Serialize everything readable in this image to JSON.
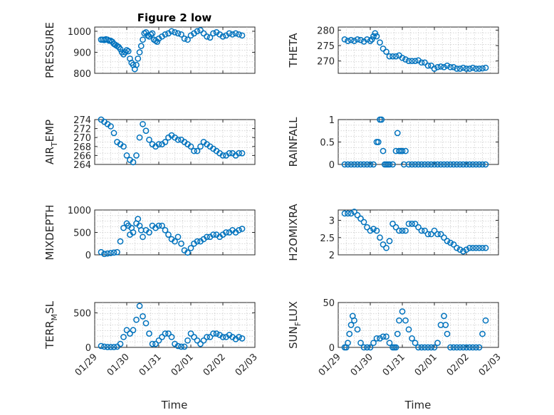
{
  "figure": {
    "title": "Figure 2 low",
    "marker_color": "#0072BD",
    "x_axis_label": "Time",
    "x_ticks": [
      "01/29",
      "01/30",
      "01/31",
      "02/01",
      "02/02",
      "02/03"
    ]
  },
  "chart_data": [
    {
      "type": "scatter",
      "title": "Figure 2 low",
      "ylabel": "PRESSURE",
      "xlabel": "",
      "xlim": [
        0,
        5
      ],
      "ylim": [
        800,
        1020
      ],
      "yticks": [
        800,
        900,
        1000
      ],
      "grid": true,
      "x": [
        0.2,
        0.25,
        0.3,
        0.35,
        0.4,
        0.45,
        0.5,
        0.55,
        0.6,
        0.65,
        0.7,
        0.75,
        0.8,
        0.85,
        0.9,
        0.95,
        1.0,
        1.05,
        1.1,
        1.15,
        1.2,
        1.25,
        1.3,
        1.35,
        1.4,
        1.45,
        1.5,
        1.55,
        1.6,
        1.65,
        1.7,
        1.75,
        1.8,
        1.85,
        1.9,
        1.95,
        2.0,
        2.1,
        2.2,
        2.3,
        2.4,
        2.5,
        2.6,
        2.7,
        2.8,
        2.9,
        3.0,
        3.1,
        3.2,
        3.3,
        3.4,
        3.5,
        3.6,
        3.7,
        3.8,
        3.9,
        4.0,
        4.1,
        4.2,
        4.3,
        4.4,
        4.5,
        4.6
      ],
      "y": [
        960,
        960,
        958,
        962,
        960,
        955,
        955,
        950,
        940,
        935,
        930,
        925,
        915,
        900,
        890,
        900,
        910,
        905,
        870,
        850,
        840,
        820,
        840,
        870,
        900,
        930,
        960,
        990,
        995,
        980,
        975,
        985,
        990,
        960,
        955,
        950,
        965,
        975,
        985,
        990,
        1000,
        995,
        990,
        985,
        965,
        960,
        980,
        990,
        1000,
        1005,
        990,
        975,
        970,
        990,
        995,
        985,
        975,
        980,
        990,
        985,
        990,
        985,
        980
      ]
    },
    {
      "type": "scatter",
      "ylabel": "THETA",
      "xlabel": "",
      "xlim": [
        0,
        5
      ],
      "ylim": [
        266,
        281
      ],
      "yticks": [
        270,
        275,
        280
      ],
      "grid": true,
      "x": [
        0.2,
        0.3,
        0.4,
        0.5,
        0.6,
        0.7,
        0.8,
        0.9,
        1.0,
        1.05,
        1.1,
        1.15,
        1.2,
        1.3,
        1.4,
        1.5,
        1.6,
        1.7,
        1.8,
        1.9,
        2.0,
        2.1,
        2.2,
        2.3,
        2.4,
        2.5,
        2.6,
        2.7,
        2.8,
        2.9,
        3.0,
        3.1,
        3.2,
        3.3,
        3.4,
        3.5,
        3.6,
        3.7,
        3.8,
        3.9,
        4.0,
        4.1,
        4.2,
        4.3,
        4.4,
        4.5,
        4.6
      ],
      "y": [
        277,
        276.5,
        276.8,
        276.5,
        277,
        276.8,
        276.3,
        277,
        276.5,
        277,
        278,
        279,
        278,
        276,
        274,
        273,
        271.5,
        271.5,
        271.5,
        271.8,
        271,
        270.5,
        270,
        270,
        270,
        270.2,
        269.5,
        269.5,
        268.5,
        268.5,
        267.5,
        268,
        268.2,
        268,
        268.5,
        268,
        268,
        267.5,
        267.5,
        267.8,
        267.5,
        267.5,
        267.8,
        267.5,
        267.5,
        267.6,
        267.8
      ]
    },
    {
      "type": "scatter",
      "ylabel": "AIR_TEMP",
      "xlabel": "",
      "xlim": [
        0,
        5
      ],
      "ylim": [
        264,
        274
      ],
      "yticks": [
        264,
        266,
        268,
        270,
        272,
        274
      ],
      "grid": true,
      "x": [
        0.2,
        0.3,
        0.4,
        0.5,
        0.6,
        0.7,
        0.8,
        0.9,
        1.0,
        1.1,
        1.2,
        1.3,
        1.4,
        1.5,
        1.6,
        1.7,
        1.8,
        1.9,
        2.0,
        2.1,
        2.2,
        2.3,
        2.4,
        2.5,
        2.6,
        2.7,
        2.8,
        2.9,
        3.0,
        3.1,
        3.2,
        3.3,
        3.4,
        3.5,
        3.6,
        3.7,
        3.8,
        3.9,
        4.0,
        4.1,
        4.2,
        4.3,
        4.4,
        4.5,
        4.6
      ],
      "y": [
        274,
        273.5,
        273,
        272.5,
        271,
        269,
        268.5,
        268,
        266,
        265,
        264.5,
        266,
        270,
        273,
        271.5,
        269.5,
        268.5,
        268,
        268.5,
        268.5,
        269,
        270,
        270.5,
        270,
        269.5,
        269.5,
        269,
        268.5,
        268,
        267,
        267,
        268,
        269,
        268.5,
        268,
        267.5,
        267,
        266.5,
        266,
        266,
        266.5,
        266.5,
        266,
        266.5,
        266.5
      ]
    },
    {
      "type": "scatter",
      "ylabel": "RAINFALL",
      "xlabel": "",
      "xlim": [
        0,
        5
      ],
      "ylim": [
        0,
        1
      ],
      "yticks": [
        0,
        0.5,
        1
      ],
      "grid": true,
      "x": [
        0.2,
        0.3,
        0.4,
        0.5,
        0.6,
        0.7,
        0.8,
        0.9,
        1.0,
        1.1,
        1.2,
        1.25,
        1.3,
        1.35,
        1.4,
        1.45,
        1.5,
        1.55,
        1.6,
        1.7,
        1.8,
        1.85,
        1.9,
        1.95,
        2.0,
        2.05,
        2.1,
        2.2,
        2.3,
        2.4,
        2.5,
        2.6,
        2.7,
        2.8,
        2.9,
        3.0,
        3.1,
        3.2,
        3.3,
        3.4,
        3.5,
        3.6,
        3.7,
        3.8,
        3.9,
        4.0,
        4.1,
        4.2,
        4.3,
        4.4,
        4.5,
        4.6
      ],
      "y": [
        0,
        0,
        0,
        0,
        0,
        0,
        0,
        0,
        0,
        0,
        0.5,
        0.5,
        1,
        1,
        0.3,
        0,
        0,
        0,
        0,
        0,
        0.3,
        0.7,
        0.3,
        0.3,
        0.3,
        0,
        0.3,
        0,
        0,
        0,
        0,
        0,
        0,
        0,
        0,
        0,
        0,
        0,
        0,
        0,
        0,
        0,
        0,
        0,
        0,
        0,
        0,
        0,
        0,
        0,
        0,
        0
      ]
    },
    {
      "type": "scatter",
      "ylabel": "MIXDEPTH",
      "xlabel": "",
      "xlim": [
        0,
        5
      ],
      "ylim": [
        0,
        1000
      ],
      "yticks": [
        0,
        500,
        1000
      ],
      "grid": true,
      "x": [
        0.2,
        0.3,
        0.4,
        0.5,
        0.6,
        0.7,
        0.8,
        0.9,
        1.0,
        1.05,
        1.1,
        1.15,
        1.2,
        1.3,
        1.35,
        1.4,
        1.45,
        1.5,
        1.6,
        1.7,
        1.8,
        1.9,
        2.0,
        2.1,
        2.2,
        2.3,
        2.4,
        2.5,
        2.6,
        2.7,
        2.8,
        2.9,
        3.0,
        3.1,
        3.2,
        3.3,
        3.4,
        3.5,
        3.6,
        3.7,
        3.8,
        3.9,
        4.0,
        4.1,
        4.2,
        4.3,
        4.4,
        4.5,
        4.6
      ],
      "y": [
        60,
        20,
        30,
        40,
        50,
        60,
        300,
        600,
        700,
        650,
        450,
        600,
        500,
        700,
        800,
        650,
        550,
        400,
        550,
        500,
        650,
        600,
        650,
        650,
        550,
        450,
        350,
        300,
        400,
        250,
        100,
        50,
        150,
        250,
        300,
        300,
        350,
        400,
        400,
        450,
        450,
        400,
        450,
        500,
        500,
        550,
        500,
        550,
        580
      ]
    },
    {
      "type": "scatter",
      "ylabel": "H2OMIXRA",
      "xlabel": "",
      "xlim": [
        0,
        5
      ],
      "ylim": [
        2,
        3.3
      ],
      "yticks": [
        2,
        2.5,
        3
      ],
      "grid": true,
      "x": [
        0.2,
        0.3,
        0.4,
        0.5,
        0.6,
        0.7,
        0.8,
        0.9,
        1.0,
        1.1,
        1.2,
        1.3,
        1.4,
        1.5,
        1.6,
        1.7,
        1.8,
        1.9,
        2.0,
        2.1,
        2.2,
        2.3,
        2.4,
        2.5,
        2.6,
        2.7,
        2.8,
        2.9,
        3.0,
        3.1,
        3.2,
        3.3,
        3.4,
        3.5,
        3.6,
        3.7,
        3.8,
        3.9,
        4.0,
        4.1,
        4.2,
        4.3,
        4.4,
        4.5,
        4.6
      ],
      "y": [
        3.2,
        3.2,
        3.2,
        3.25,
        3.15,
        3.05,
        2.95,
        2.8,
        2.7,
        2.75,
        2.7,
        2.5,
        2.3,
        2.2,
        2.4,
        2.9,
        2.8,
        2.7,
        2.7,
        2.7,
        2.9,
        2.9,
        2.9,
        2.8,
        2.7,
        2.7,
        2.6,
        2.6,
        2.7,
        2.6,
        2.6,
        2.5,
        2.4,
        2.35,
        2.3,
        2.2,
        2.15,
        2.1,
        2.15,
        2.2,
        2.2,
        2.2,
        2.2,
        2.2,
        2.2
      ]
    },
    {
      "type": "scatter",
      "ylabel": "TERR_MSL",
      "xlabel": "Time",
      "xlim": [
        0,
        5
      ],
      "ylim": [
        0,
        650
      ],
      "yticks": [
        0,
        500
      ],
      "grid": true,
      "x": [
        0.2,
        0.3,
        0.4,
        0.5,
        0.6,
        0.7,
        0.8,
        0.9,
        1.0,
        1.1,
        1.2,
        1.3,
        1.4,
        1.5,
        1.6,
        1.7,
        1.8,
        1.9,
        2.0,
        2.1,
        2.2,
        2.3,
        2.4,
        2.5,
        2.6,
        2.7,
        2.8,
        2.9,
        3.0,
        3.1,
        3.2,
        3.3,
        3.4,
        3.5,
        3.6,
        3.7,
        3.8,
        3.9,
        4.0,
        4.1,
        4.2,
        4.3,
        4.4,
        4.5,
        4.6
      ],
      "y": [
        20,
        10,
        5,
        5,
        5,
        10,
        50,
        150,
        250,
        200,
        250,
        400,
        600,
        450,
        350,
        200,
        50,
        50,
        100,
        150,
        200,
        200,
        150,
        50,
        20,
        10,
        10,
        100,
        200,
        150,
        100,
        50,
        100,
        150,
        150,
        200,
        200,
        180,
        150,
        150,
        180,
        150,
        120,
        150,
        130
      ]
    },
    {
      "type": "scatter",
      "ylabel": "SUN_FLUX",
      "xlabel": "Time",
      "xlim": [
        0,
        5
      ],
      "ylim": [
        0,
        50
      ],
      "yticks": [
        0,
        50
      ],
      "grid": true,
      "x": [
        0.2,
        0.25,
        0.3,
        0.35,
        0.4,
        0.45,
        0.5,
        0.6,
        0.7,
        0.8,
        0.9,
        1.0,
        1.1,
        1.2,
        1.3,
        1.4,
        1.5,
        1.6,
        1.7,
        1.75,
        1.8,
        1.85,
        1.9,
        2.0,
        2.1,
        2.2,
        2.3,
        2.4,
        2.5,
        2.6,
        2.7,
        2.8,
        2.9,
        3.0,
        3.1,
        3.2,
        3.3,
        3.35,
        3.4,
        3.5,
        3.6,
        3.7,
        3.8,
        3.9,
        4.0,
        4.1,
        4.2,
        4.3,
        4.4,
        4.5,
        4.6
      ],
      "y": [
        0,
        0,
        5,
        15,
        25,
        35,
        30,
        20,
        5,
        0,
        0,
        0,
        5,
        10,
        10,
        12,
        12,
        5,
        0,
        0,
        0,
        15,
        30,
        40,
        30,
        20,
        10,
        5,
        0,
        0,
        0,
        0,
        0,
        0,
        5,
        25,
        35,
        25,
        15,
        0,
        0,
        0,
        0,
        0,
        0,
        0,
        0,
        0,
        0,
        15,
        30
      ]
    }
  ]
}
